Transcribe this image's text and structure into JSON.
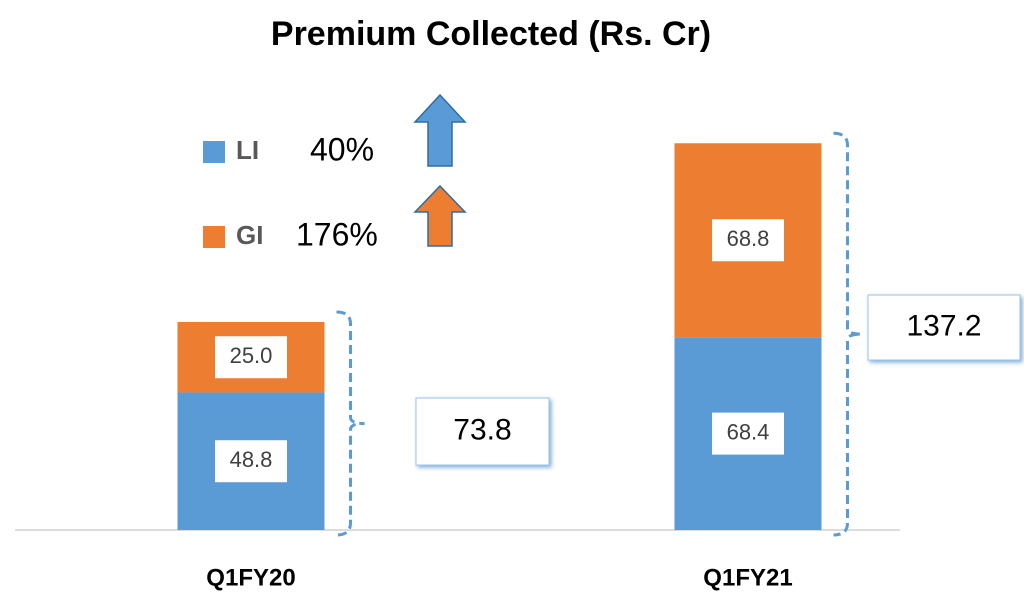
{
  "chart_data": {
    "type": "stacked_bar",
    "title": "Premium Collected (Rs. Cr)",
    "categories": [
      "Q1FY20",
      "Q1FY21"
    ],
    "series": [
      {
        "name": "LI",
        "color": "#5b9bd5",
        "values": [
          48.8,
          68.4
        ],
        "value_labels": [
          "48.8",
          "68.4"
        ],
        "growth_label": "40%"
      },
      {
        "name": "GI",
        "color": "#ed7d31",
        "values": [
          25.0,
          68.8
        ],
        "value_labels": [
          "25.0",
          "68.8"
        ],
        "growth_label": "176%"
      }
    ],
    "totals": [
      73.8,
      137.2
    ],
    "ylim": [
      0,
      160
    ]
  }
}
